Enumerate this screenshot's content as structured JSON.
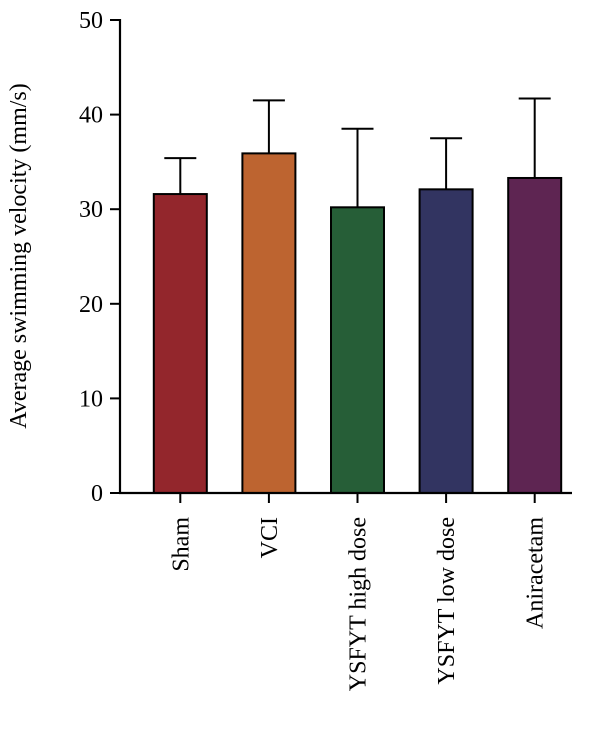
{
  "chart_data": {
    "type": "bar",
    "title": "",
    "xlabel": "",
    "ylabel": "Average swimming velocity (mm/s)",
    "ylim": [
      0,
      50
    ],
    "yticks": [
      0,
      10,
      20,
      30,
      40,
      50
    ],
    "grid": false,
    "categories": [
      "Sham",
      "VCI",
      "YSFYT high dose",
      "YSFYT low dose",
      "Aniracetam"
    ],
    "values": [
      31.6,
      35.9,
      30.2,
      32.1,
      33.3
    ],
    "error_upper": [
      3.8,
      5.6,
      8.3,
      5.4,
      8.4
    ],
    "colors": [
      "#93262c",
      "#bd6430",
      "#265e37",
      "#323461",
      "#5e2552"
    ]
  }
}
